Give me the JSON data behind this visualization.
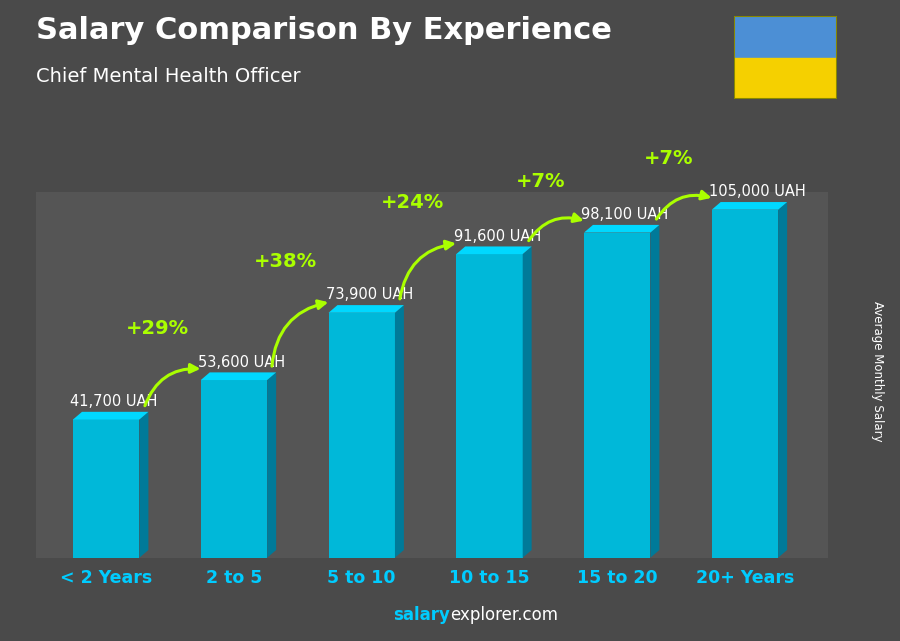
{
  "title": "Salary Comparison By Experience",
  "subtitle": "Chief Mental Health Officer",
  "categories": [
    "< 2 Years",
    "2 to 5",
    "5 to 10",
    "10 to 15",
    "15 to 20",
    "20+ Years"
  ],
  "values": [
    41700,
    53600,
    73900,
    91600,
    98100,
    105000
  ],
  "labels": [
    "41,700 UAH",
    "53,600 UAH",
    "73,900 UAH",
    "91,600 UAH",
    "98,100 UAH",
    "105,000 UAH"
  ],
  "pct_changes": [
    "+29%",
    "+38%",
    "+24%",
    "+7%",
    "+7%"
  ],
  "bar_front_color": "#00B8D9",
  "bar_right_color": "#007A99",
  "bar_top_color": "#00D8FF",
  "bg_color": "#4a4a4a",
  "title_color": "#ffffff",
  "subtitle_color": "#ffffff",
  "label_color": "#ffffff",
  "pct_color": "#aaff00",
  "tick_color": "#00CCFF",
  "footer_salary_color": "#00CCFF",
  "footer_explorer_color": "#ffffff",
  "ylabel_text": "Average Monthly Salary",
  "ukraine_flag_blue": "#4C8FD5",
  "ukraine_flag_yellow": "#F5D000",
  "footer_bold": "salary",
  "footer_normal": "explorer.com"
}
